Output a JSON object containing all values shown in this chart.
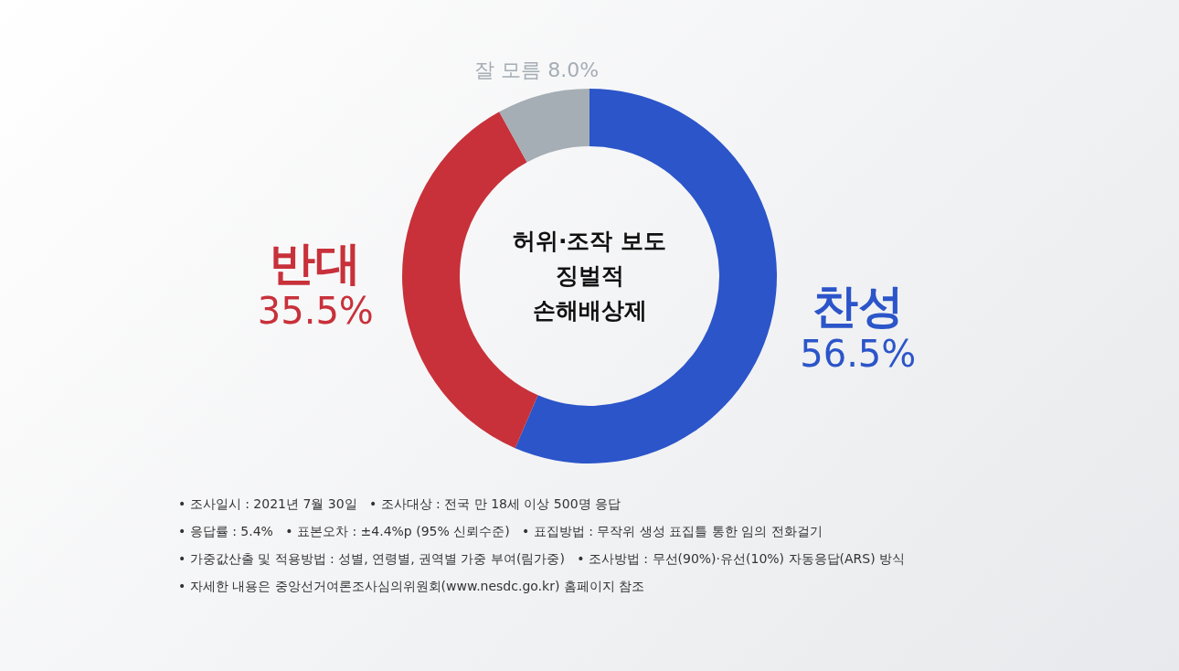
{
  "chart_data": {
    "type": "donut",
    "title": "허위·조작 보도 징벌적 손해배상제",
    "categories": [
      "찬성",
      "반대",
      "잘 모름"
    ],
    "values": [
      56.5,
      35.5,
      8.0
    ],
    "value_labels": [
      "56.5%",
      "35.5%",
      "8.0%"
    ],
    "colors": [
      "#2b55c9",
      "#c8313a",
      "#a5adb5"
    ],
    "annotations": [
      "• 조사일시 : 2021년 7월 30일   • 조사대상 : 전국 만 18세 이상 500명 응답",
      "• 응답률 : 5.4%   • 표본오차 : ±4.4%p (95% 신뢰수준)   • 표집방법 : 무작위 생성 표집틀 통한 임의 전화걸기",
      "• 가중값산출 및 적용방법 : 성별, 연령별, 권역별 가중 부여(림가중)   • 조사방법 : 무선(90%)·유선(10%) 자동응답(ARS) 방식",
      "• 자세한 내용은 중앙선거여론조사심의위원회(www.nesdc.go.kr) 홈페이지 참조"
    ]
  }
}
